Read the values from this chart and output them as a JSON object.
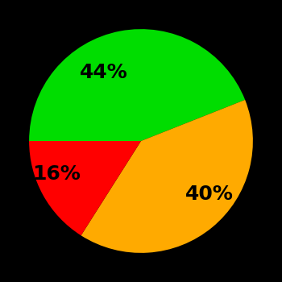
{
  "slices": [
    44,
    40,
    16
  ],
  "colors": [
    "#00dd00",
    "#ffaa00",
    "#ff0000"
  ],
  "labels": [
    "44%",
    "40%",
    "16%"
  ],
  "background_color": "#000000",
  "startangle": 180,
  "counterclock": false,
  "figsize": [
    3.5,
    3.5
  ],
  "dpi": 100,
  "label_fontsize": 18,
  "labeldistance": 0.62
}
